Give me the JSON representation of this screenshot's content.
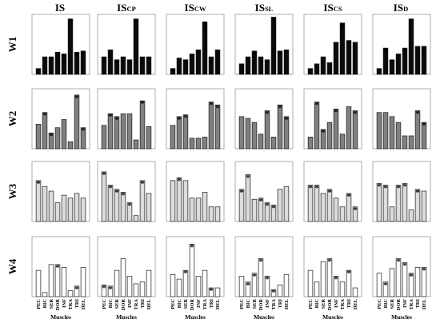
{
  "chart_data": {
    "type": "bar",
    "layout": "grid",
    "ylim": [
      0,
      1
    ],
    "grid": false,
    "legend": "none",
    "rows": [
      "W1",
      "W2",
      "W3",
      "W4"
    ],
    "columns": [
      {
        "main": "IS",
        "sub": ""
      },
      {
        "main": "IS",
        "sub": "CP"
      },
      {
        "main": "IS",
        "sub": "CW"
      },
      {
        "main": "IS",
        "sub": "SL"
      },
      {
        "main": "IS",
        "sub": "CS"
      },
      {
        "main": "IS",
        "sub": "D"
      }
    ],
    "categories": [
      "PEC",
      "BIC",
      "SER",
      "DOR",
      "INF",
      "TRA",
      "TRI",
      "DEL"
    ],
    "xlabel": "Muscles",
    "star_symbol": "*",
    "row_colors": [
      "#0a0a0a",
      "#808080",
      "#dcdcdc",
      "#ffffff"
    ],
    "panels": [
      [
        {
          "values": [
            0.1,
            0.3,
            0.3,
            0.38,
            0.35,
            0.95,
            0.38,
            0.4
          ],
          "stars": [
            2,
            4,
            5,
            6,
            7
          ]
        },
        {
          "values": [
            0.3,
            0.42,
            0.25,
            0.3,
            0.25,
            0.95,
            0.3,
            0.3
          ],
          "stars": [
            0,
            2,
            5
          ]
        },
        {
          "values": [
            0.1,
            0.28,
            0.25,
            0.35,
            0.42,
            0.9,
            0.3,
            0.42
          ],
          "stars": [
            0,
            5
          ]
        },
        {
          "values": [
            0.18,
            0.3,
            0.4,
            0.3,
            0.25,
            0.98,
            0.4,
            0.42
          ],
          "stars": [
            1,
            2,
            5,
            6
          ]
        },
        {
          "values": [
            0.1,
            0.18,
            0.3,
            0.2,
            0.55,
            0.88,
            0.58,
            0.55
          ],
          "stars": [
            5,
            6
          ]
        },
        {
          "values": [
            0.1,
            0.45,
            0.25,
            0.35,
            0.45,
            0.95,
            0.48,
            0.48
          ],
          "stars": [
            1,
            2,
            4,
            5,
            7
          ]
        }
      ],
      [
        {
          "values": [
            0.42,
            0.62,
            0.27,
            0.36,
            0.5,
            0.12,
            0.92,
            0.36
          ],
          "stars": [
            1,
            2,
            6,
            7
          ]
        },
        {
          "values": [
            0.4,
            0.6,
            0.55,
            0.6,
            0.6,
            0.15,
            0.82,
            0.38
          ],
          "stars": [
            1,
            2,
            6
          ]
        },
        {
          "values": [
            0.4,
            0.55,
            0.58,
            0.18,
            0.18,
            0.2,
            0.8,
            0.75
          ],
          "stars": [
            1,
            2,
            6,
            7
          ]
        },
        {
          "values": [
            0.55,
            0.52,
            0.45,
            0.25,
            0.65,
            0.2,
            0.75,
            0.55
          ],
          "stars": [
            4,
            6,
            7
          ]
        },
        {
          "values": [
            0.2,
            0.8,
            0.33,
            0.45,
            0.68,
            0.25,
            0.72,
            0.65
          ],
          "stars": [
            1,
            2,
            4,
            7
          ]
        },
        {
          "values": [
            0.62,
            0.62,
            0.55,
            0.45,
            0.22,
            0.22,
            0.65,
            0.45
          ],
          "stars": [
            6,
            7
          ]
        }
      ],
      [
        {
          "values": [
            0.7,
            0.6,
            0.52,
            0.32,
            0.45,
            0.4,
            0.48,
            0.4
          ],
          "stars": [
            0
          ]
        },
        {
          "values": [
            0.85,
            0.62,
            0.55,
            0.5,
            0.32,
            0.1,
            0.7,
            0.48
          ],
          "stars": [
            0,
            1,
            2,
            3,
            4,
            6
          ]
        },
        {
          "values": [
            0.7,
            0.75,
            0.7,
            0.4,
            0.4,
            0.5,
            0.25,
            0.25
          ],
          "stars": [
            1
          ]
        },
        {
          "values": [
            0.55,
            0.8,
            0.38,
            0.4,
            0.32,
            0.28,
            0.55,
            0.6
          ],
          "stars": [
            0,
            1,
            3,
            4,
            5
          ]
        },
        {
          "values": [
            0.62,
            0.62,
            0.48,
            0.55,
            0.4,
            0.25,
            0.48,
            0.25
          ],
          "stars": [
            0,
            1,
            3,
            6,
            7
          ]
        },
        {
          "values": [
            0.65,
            0.62,
            0.25,
            0.62,
            0.65,
            0.2,
            0.55,
            0.52
          ],
          "stars": [
            0,
            1,
            3,
            4,
            6
          ]
        }
      ],
      [
        {
          "values": [
            0.45,
            0.07,
            0.55,
            0.55,
            0.5,
            0.1,
            0.18,
            0.5
          ],
          "stars": [
            3,
            6
          ]
        },
        {
          "values": [
            0.2,
            0.18,
            0.45,
            0.65,
            0.35,
            0.22,
            0.25,
            0.45
          ],
          "stars": [
            0,
            1
          ]
        },
        {
          "values": [
            0.38,
            0.3,
            0.45,
            0.9,
            0.35,
            0.45,
            0.15,
            0.15
          ],
          "stars": [
            2,
            3,
            6
          ]
        },
        {
          "values": [
            0.35,
            0.25,
            0.4,
            0.65,
            0.35,
            0.12,
            0.2,
            0.38
          ],
          "stars": [
            1,
            2,
            3,
            4,
            5
          ]
        },
        {
          "values": [
            0.45,
            0.25,
            0.6,
            0.65,
            0.35,
            0.25,
            0.45,
            0.15
          ],
          "stars": [
            3,
            4,
            6
          ]
        },
        {
          "values": [
            0.4,
            0.25,
            0.48,
            0.65,
            0.58,
            0.4,
            0.5,
            0.5
          ],
          "stars": [
            1,
            3,
            4,
            5,
            7
          ]
        }
      ]
    ]
  }
}
